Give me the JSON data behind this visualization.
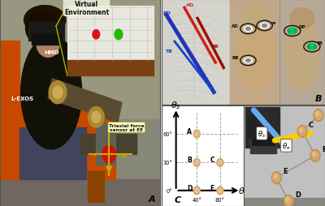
{
  "background_color": "#f0f0f0",
  "panel_border_color": "#555555",
  "panel_border_lw": 0.8,
  "panelA_bg": "#9a9a8a",
  "panelA_label": "A",
  "panelA_chair_color": "#c84800",
  "panelA_person_body": "#1a1008",
  "panelA_person_skin": "#b08060",
  "panelA_hmd_color": "#222222",
  "panelA_exos_color": "#7a6040",
  "panelA_venv_bg": "#e8e8e0",
  "panelA_venv_floor": "#7a4010",
  "panelA_venv_grid": "#c0c0c0",
  "panelA_red_dot": "#dd1111",
  "panelA_green_dot": "#22bb00",
  "panelA_yellow_line": "#aacc00",
  "panelA_sensor_red": "#cc1100",
  "panelA_arrow_gold": "#ccaa00",
  "panelB_label": "B",
  "panelB_left_bg": "#d8d8d8",
  "panelB_rib_color": "#c8c8c8",
  "panelB_blue_line": "#2233cc",
  "panelB_red_line": "#cc2211",
  "panelB_darkred_line": "#aa1100",
  "panelB_right_bg_front": "#c0a888",
  "panelB_right_bg_back": "#c0b0a0",
  "panelB_skin_front": "#c8a070",
  "panelB_skin_back": "#b89878",
  "panelB_sensor_circle_bg": "#ffffff",
  "panelB_sensor_green": "#00aa55",
  "panelC_label": "C",
  "panelC_bg": "#ffffff",
  "panelC_axis_color": "#111111",
  "panelC_grid_color": "#aaaaaa",
  "panelC_point_color": "#d4a870",
  "panelC_photo_bg": "#b8b8b8",
  "panelC_device_dark": "#333333",
  "panelC_blue_arm": "#66aaee",
  "panelC_yellow_arm": "#ffcc00",
  "panelC_node_color": "#d4a870",
  "panelC_label_box_bg": "#ffffff"
}
